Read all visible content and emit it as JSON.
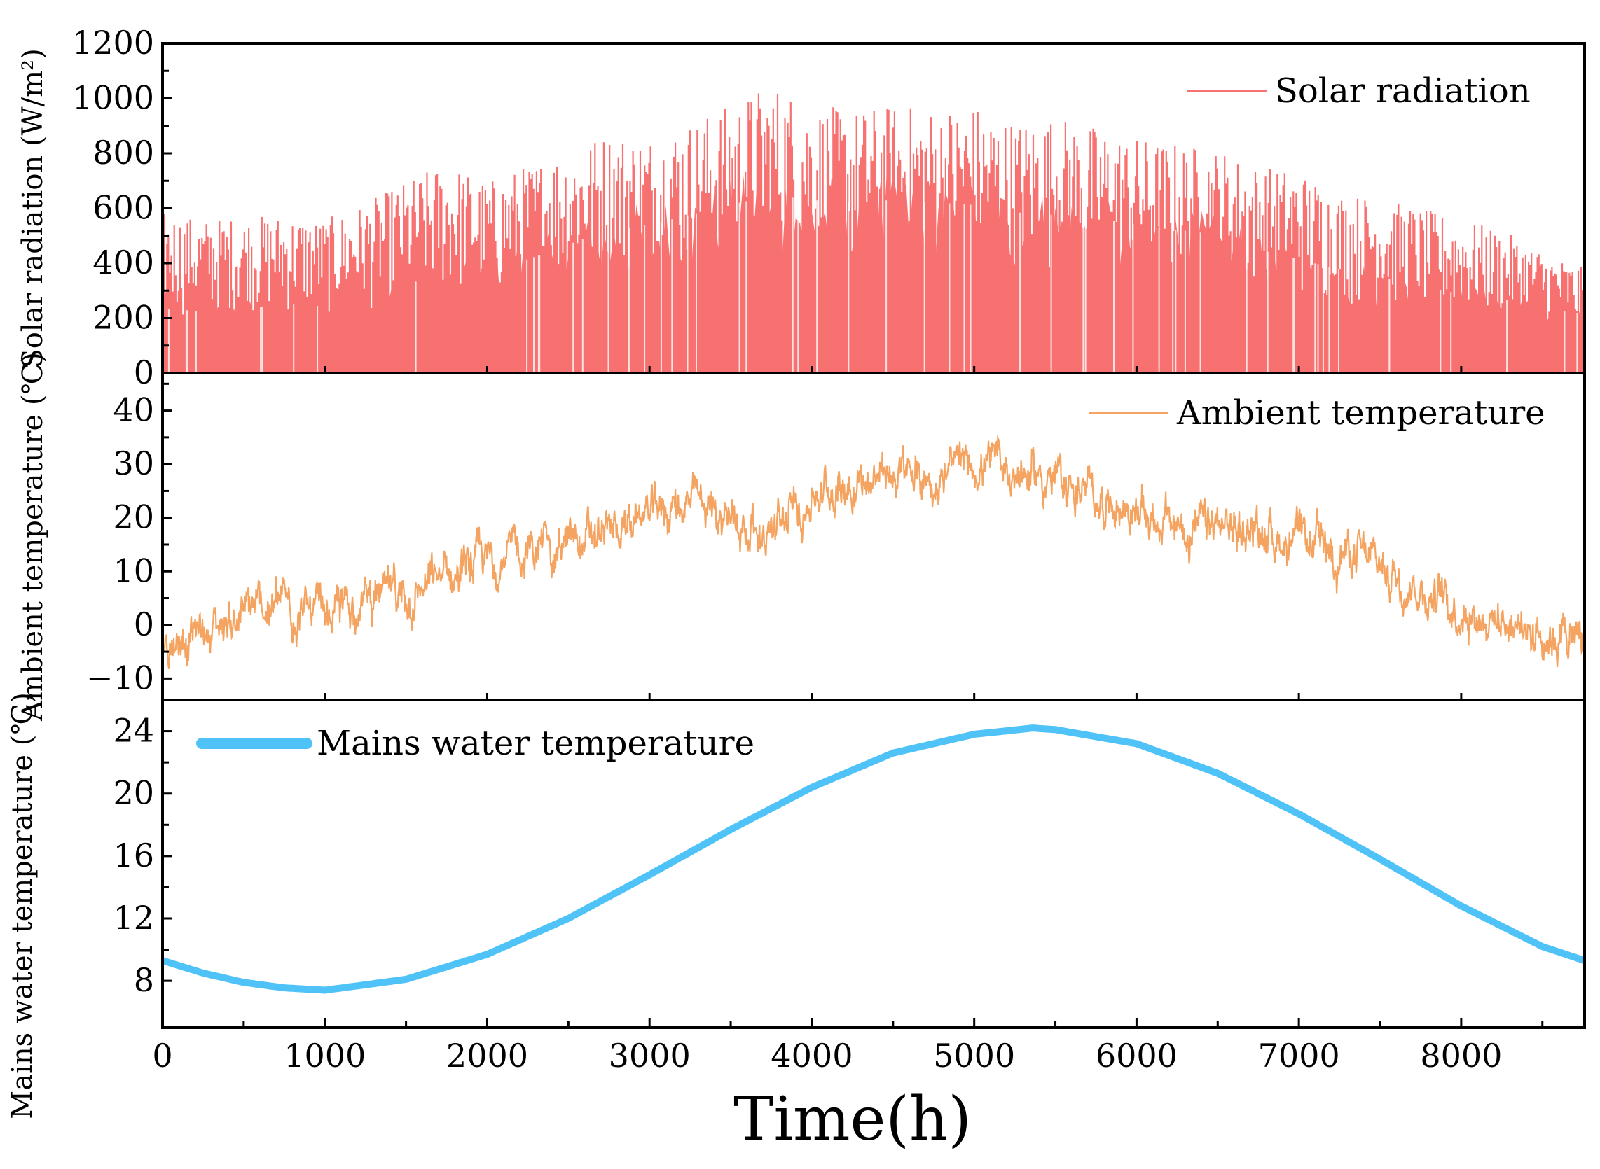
{
  "chart_data": {
    "type": "line",
    "xlabel": "Time(h)",
    "xlim": [
      0,
      8760
    ],
    "xticks": [
      0,
      1000,
      2000,
      3000,
      4000,
      5000,
      6000,
      7000,
      8000
    ],
    "xtick_labels": [
      "0",
      "1000",
      "2000",
      "3000",
      "4000",
      "5000",
      "6000",
      "7000",
      "8000"
    ],
    "panels": [
      {
        "id": "solar",
        "style": "filled-spikes",
        "ylabel": "Solar radiation (W/m²)",
        "legend": "Solar radiation",
        "legend_position": "top-right",
        "color": "#f87171",
        "ylim": [
          0,
          1200
        ],
        "yticks": [
          0,
          200,
          400,
          600,
          800,
          1000,
          1200
        ],
        "ytick_labels": [
          "0",
          "200",
          "400",
          "600",
          "800",
          "1000",
          "1200"
        ],
        "x": [
          0,
          250,
          500,
          750,
          1000,
          1250,
          1500,
          1750,
          2000,
          2250,
          2500,
          2750,
          3000,
          3250,
          3500,
          3750,
          4000,
          4250,
          4500,
          4750,
          5000,
          5250,
          5500,
          5750,
          6000,
          6250,
          6500,
          6750,
          7000,
          7250,
          7500,
          7750,
          8000,
          8250,
          8500,
          8760
        ],
        "envelope": [
          590,
          560,
          570,
          580,
          560,
          620,
          700,
          770,
          700,
          760,
          830,
          880,
          870,
          920,
          980,
          1065,
          980,
          960,
          980,
          970,
          980,
          920,
          940,
          900,
          860,
          840,
          820,
          760,
          740,
          660,
          640,
          600,
          560,
          520,
          450,
          380
        ],
        "typical": [
          260,
          250,
          260,
          280,
          270,
          310,
          360,
          400,
          420,
          460,
          520,
          580,
          600,
          640,
          680,
          720,
          700,
          690,
          700,
          690,
          680,
          650,
          640,
          630,
          600,
          580,
          560,
          500,
          460,
          420,
          390,
          350,
          320,
          300,
          260,
          240
        ]
      },
      {
        "id": "ambient",
        "style": "line",
        "ylabel": "Ambient temperature (℃)",
        "legend": "Ambient temperature",
        "legend_position": "top-right",
        "color": "#f4a460",
        "ylim": [
          -14,
          47
        ],
        "yticks": [
          -10,
          0,
          10,
          20,
          30,
          40
        ],
        "ytick_labels": [
          "−10",
          "0",
          "10",
          "20",
          "30",
          "40"
        ],
        "x": [
          0,
          250,
          500,
          750,
          1000,
          1250,
          1500,
          1750,
          2000,
          2250,
          2500,
          2750,
          3000,
          3250,
          3500,
          3750,
          4000,
          4250,
          4500,
          4750,
          5000,
          5250,
          5500,
          5750,
          6000,
          6250,
          6500,
          6750,
          7000,
          7250,
          7500,
          7750,
          8000,
          8250,
          8500,
          8760
        ],
        "mean": [
          -3,
          -1,
          2,
          4,
          1,
          5,
          5,
          9,
          12,
          14,
          15,
          17,
          21,
          23,
          20,
          17,
          24,
          27,
          28,
          27,
          30,
          29,
          27,
          24,
          21,
          18,
          18,
          18,
          15,
          14,
          11,
          7,
          3,
          1,
          -1,
          -3
        ]
      },
      {
        "id": "mains",
        "style": "line",
        "ylabel": "Mains water temperature (℃)",
        "legend": "Mains water temperature",
        "legend_position": "top-left",
        "color": "#4fc3f7",
        "ylim": [
          5,
          26
        ],
        "yticks": [
          8,
          12,
          16,
          20,
          24
        ],
        "ytick_labels": [
          "8",
          "12",
          "16",
          "20",
          "24"
        ],
        "x": [
          0,
          250,
          500,
          750,
          1000,
          1500,
          2000,
          2500,
          3000,
          3500,
          4000,
          4500,
          5000,
          5360,
          5500,
          6000,
          6500,
          7000,
          7500,
          8000,
          8500,
          8760
        ],
        "y": [
          9.3,
          8.5,
          7.9,
          7.55,
          7.4,
          8.1,
          9.7,
          12.0,
          14.8,
          17.7,
          20.4,
          22.6,
          23.8,
          24.2,
          24.1,
          23.2,
          21.3,
          18.7,
          15.8,
          12.8,
          10.2,
          9.3
        ]
      }
    ]
  }
}
